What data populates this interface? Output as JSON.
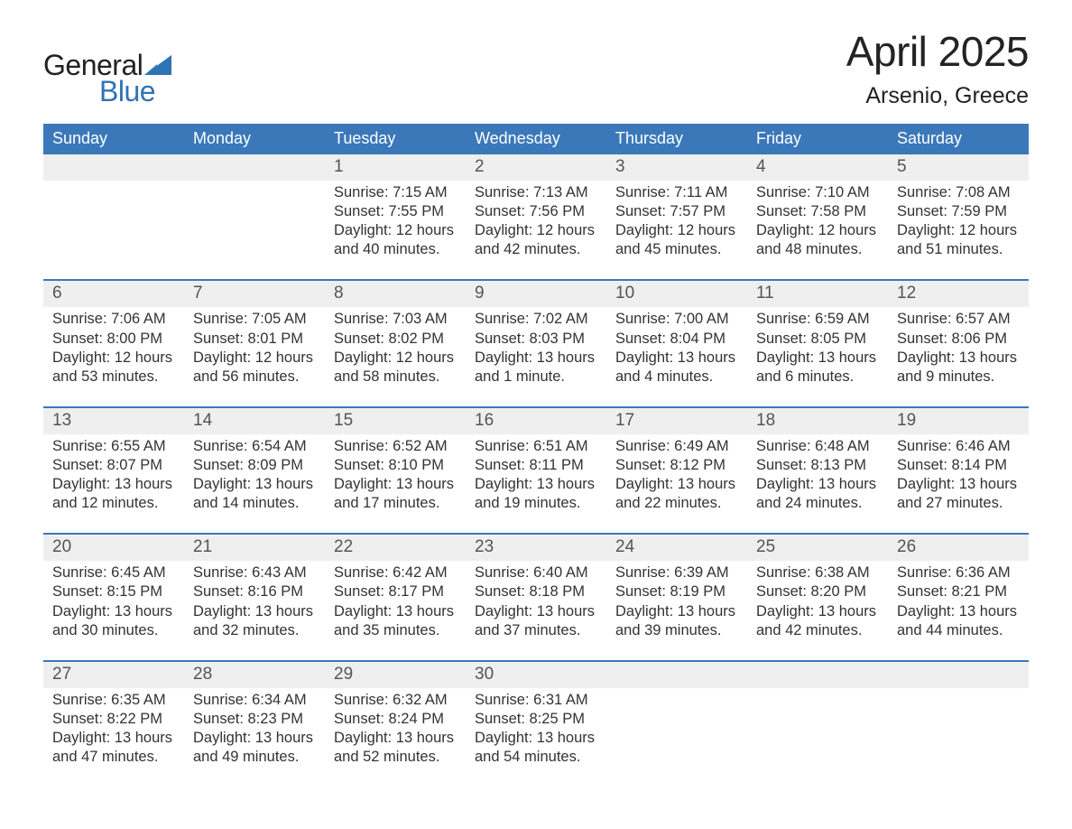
{
  "logo": {
    "word1": "General",
    "word2": "Blue",
    "text_color_dark": "#222222",
    "text_color_blue": "#2f74b5",
    "sail_color": "#2f74b5"
  },
  "header": {
    "title": "April 2025",
    "location": "Arsenio, Greece",
    "title_fontsize": 46,
    "location_fontsize": 25,
    "text_color": "#232323"
  },
  "calendar": {
    "header_bg": "#3b78b9",
    "header_text_color": "#ffffff",
    "week_border_color": "#3b78b9",
    "daynum_bg": "#efefef",
    "daynum_color": "#555555",
    "body_text_color": "#333333",
    "body_fontsize": 16.5,
    "days_of_week": [
      "Sunday",
      "Monday",
      "Tuesday",
      "Wednesday",
      "Thursday",
      "Friday",
      "Saturday"
    ],
    "weeks": [
      [
        {
          "n": null
        },
        {
          "n": null
        },
        {
          "n": "1",
          "sunrise": "Sunrise: 7:15 AM",
          "sunset": "Sunset: 7:55 PM",
          "daylight1": "Daylight: 12 hours",
          "daylight2": "and 40 minutes."
        },
        {
          "n": "2",
          "sunrise": "Sunrise: 7:13 AM",
          "sunset": "Sunset: 7:56 PM",
          "daylight1": "Daylight: 12 hours",
          "daylight2": "and 42 minutes."
        },
        {
          "n": "3",
          "sunrise": "Sunrise: 7:11 AM",
          "sunset": "Sunset: 7:57 PM",
          "daylight1": "Daylight: 12 hours",
          "daylight2": "and 45 minutes."
        },
        {
          "n": "4",
          "sunrise": "Sunrise: 7:10 AM",
          "sunset": "Sunset: 7:58 PM",
          "daylight1": "Daylight: 12 hours",
          "daylight2": "and 48 minutes."
        },
        {
          "n": "5",
          "sunrise": "Sunrise: 7:08 AM",
          "sunset": "Sunset: 7:59 PM",
          "daylight1": "Daylight: 12 hours",
          "daylight2": "and 51 minutes."
        }
      ],
      [
        {
          "n": "6",
          "sunrise": "Sunrise: 7:06 AM",
          "sunset": "Sunset: 8:00 PM",
          "daylight1": "Daylight: 12 hours",
          "daylight2": "and 53 minutes."
        },
        {
          "n": "7",
          "sunrise": "Sunrise: 7:05 AM",
          "sunset": "Sunset: 8:01 PM",
          "daylight1": "Daylight: 12 hours",
          "daylight2": "and 56 minutes."
        },
        {
          "n": "8",
          "sunrise": "Sunrise: 7:03 AM",
          "sunset": "Sunset: 8:02 PM",
          "daylight1": "Daylight: 12 hours",
          "daylight2": "and 58 minutes."
        },
        {
          "n": "9",
          "sunrise": "Sunrise: 7:02 AM",
          "sunset": "Sunset: 8:03 PM",
          "daylight1": "Daylight: 13 hours",
          "daylight2": "and 1 minute."
        },
        {
          "n": "10",
          "sunrise": "Sunrise: 7:00 AM",
          "sunset": "Sunset: 8:04 PM",
          "daylight1": "Daylight: 13 hours",
          "daylight2": "and 4 minutes."
        },
        {
          "n": "11",
          "sunrise": "Sunrise: 6:59 AM",
          "sunset": "Sunset: 8:05 PM",
          "daylight1": "Daylight: 13 hours",
          "daylight2": "and 6 minutes."
        },
        {
          "n": "12",
          "sunrise": "Sunrise: 6:57 AM",
          "sunset": "Sunset: 8:06 PM",
          "daylight1": "Daylight: 13 hours",
          "daylight2": "and 9 minutes."
        }
      ],
      [
        {
          "n": "13",
          "sunrise": "Sunrise: 6:55 AM",
          "sunset": "Sunset: 8:07 PM",
          "daylight1": "Daylight: 13 hours",
          "daylight2": "and 12 minutes."
        },
        {
          "n": "14",
          "sunrise": "Sunrise: 6:54 AM",
          "sunset": "Sunset: 8:09 PM",
          "daylight1": "Daylight: 13 hours",
          "daylight2": "and 14 minutes."
        },
        {
          "n": "15",
          "sunrise": "Sunrise: 6:52 AM",
          "sunset": "Sunset: 8:10 PM",
          "daylight1": "Daylight: 13 hours",
          "daylight2": "and 17 minutes."
        },
        {
          "n": "16",
          "sunrise": "Sunrise: 6:51 AM",
          "sunset": "Sunset: 8:11 PM",
          "daylight1": "Daylight: 13 hours",
          "daylight2": "and 19 minutes."
        },
        {
          "n": "17",
          "sunrise": "Sunrise: 6:49 AM",
          "sunset": "Sunset: 8:12 PM",
          "daylight1": "Daylight: 13 hours",
          "daylight2": "and 22 minutes."
        },
        {
          "n": "18",
          "sunrise": "Sunrise: 6:48 AM",
          "sunset": "Sunset: 8:13 PM",
          "daylight1": "Daylight: 13 hours",
          "daylight2": "and 24 minutes."
        },
        {
          "n": "19",
          "sunrise": "Sunrise: 6:46 AM",
          "sunset": "Sunset: 8:14 PM",
          "daylight1": "Daylight: 13 hours",
          "daylight2": "and 27 minutes."
        }
      ],
      [
        {
          "n": "20",
          "sunrise": "Sunrise: 6:45 AM",
          "sunset": "Sunset: 8:15 PM",
          "daylight1": "Daylight: 13 hours",
          "daylight2": "and 30 minutes."
        },
        {
          "n": "21",
          "sunrise": "Sunrise: 6:43 AM",
          "sunset": "Sunset: 8:16 PM",
          "daylight1": "Daylight: 13 hours",
          "daylight2": "and 32 minutes."
        },
        {
          "n": "22",
          "sunrise": "Sunrise: 6:42 AM",
          "sunset": "Sunset: 8:17 PM",
          "daylight1": "Daylight: 13 hours",
          "daylight2": "and 35 minutes."
        },
        {
          "n": "23",
          "sunrise": "Sunrise: 6:40 AM",
          "sunset": "Sunset: 8:18 PM",
          "daylight1": "Daylight: 13 hours",
          "daylight2": "and 37 minutes."
        },
        {
          "n": "24",
          "sunrise": "Sunrise: 6:39 AM",
          "sunset": "Sunset: 8:19 PM",
          "daylight1": "Daylight: 13 hours",
          "daylight2": "and 39 minutes."
        },
        {
          "n": "25",
          "sunrise": "Sunrise: 6:38 AM",
          "sunset": "Sunset: 8:20 PM",
          "daylight1": "Daylight: 13 hours",
          "daylight2": "and 42 minutes."
        },
        {
          "n": "26",
          "sunrise": "Sunrise: 6:36 AM",
          "sunset": "Sunset: 8:21 PM",
          "daylight1": "Daylight: 13 hours",
          "daylight2": "and 44 minutes."
        }
      ],
      [
        {
          "n": "27",
          "sunrise": "Sunrise: 6:35 AM",
          "sunset": "Sunset: 8:22 PM",
          "daylight1": "Daylight: 13 hours",
          "daylight2": "and 47 minutes."
        },
        {
          "n": "28",
          "sunrise": "Sunrise: 6:34 AM",
          "sunset": "Sunset: 8:23 PM",
          "daylight1": "Daylight: 13 hours",
          "daylight2": "and 49 minutes."
        },
        {
          "n": "29",
          "sunrise": "Sunrise: 6:32 AM",
          "sunset": "Sunset: 8:24 PM",
          "daylight1": "Daylight: 13 hours",
          "daylight2": "and 52 minutes."
        },
        {
          "n": "30",
          "sunrise": "Sunrise: 6:31 AM",
          "sunset": "Sunset: 8:25 PM",
          "daylight1": "Daylight: 13 hours",
          "daylight2": "and 54 minutes."
        },
        {
          "n": null
        },
        {
          "n": null
        },
        {
          "n": null
        }
      ]
    ]
  }
}
